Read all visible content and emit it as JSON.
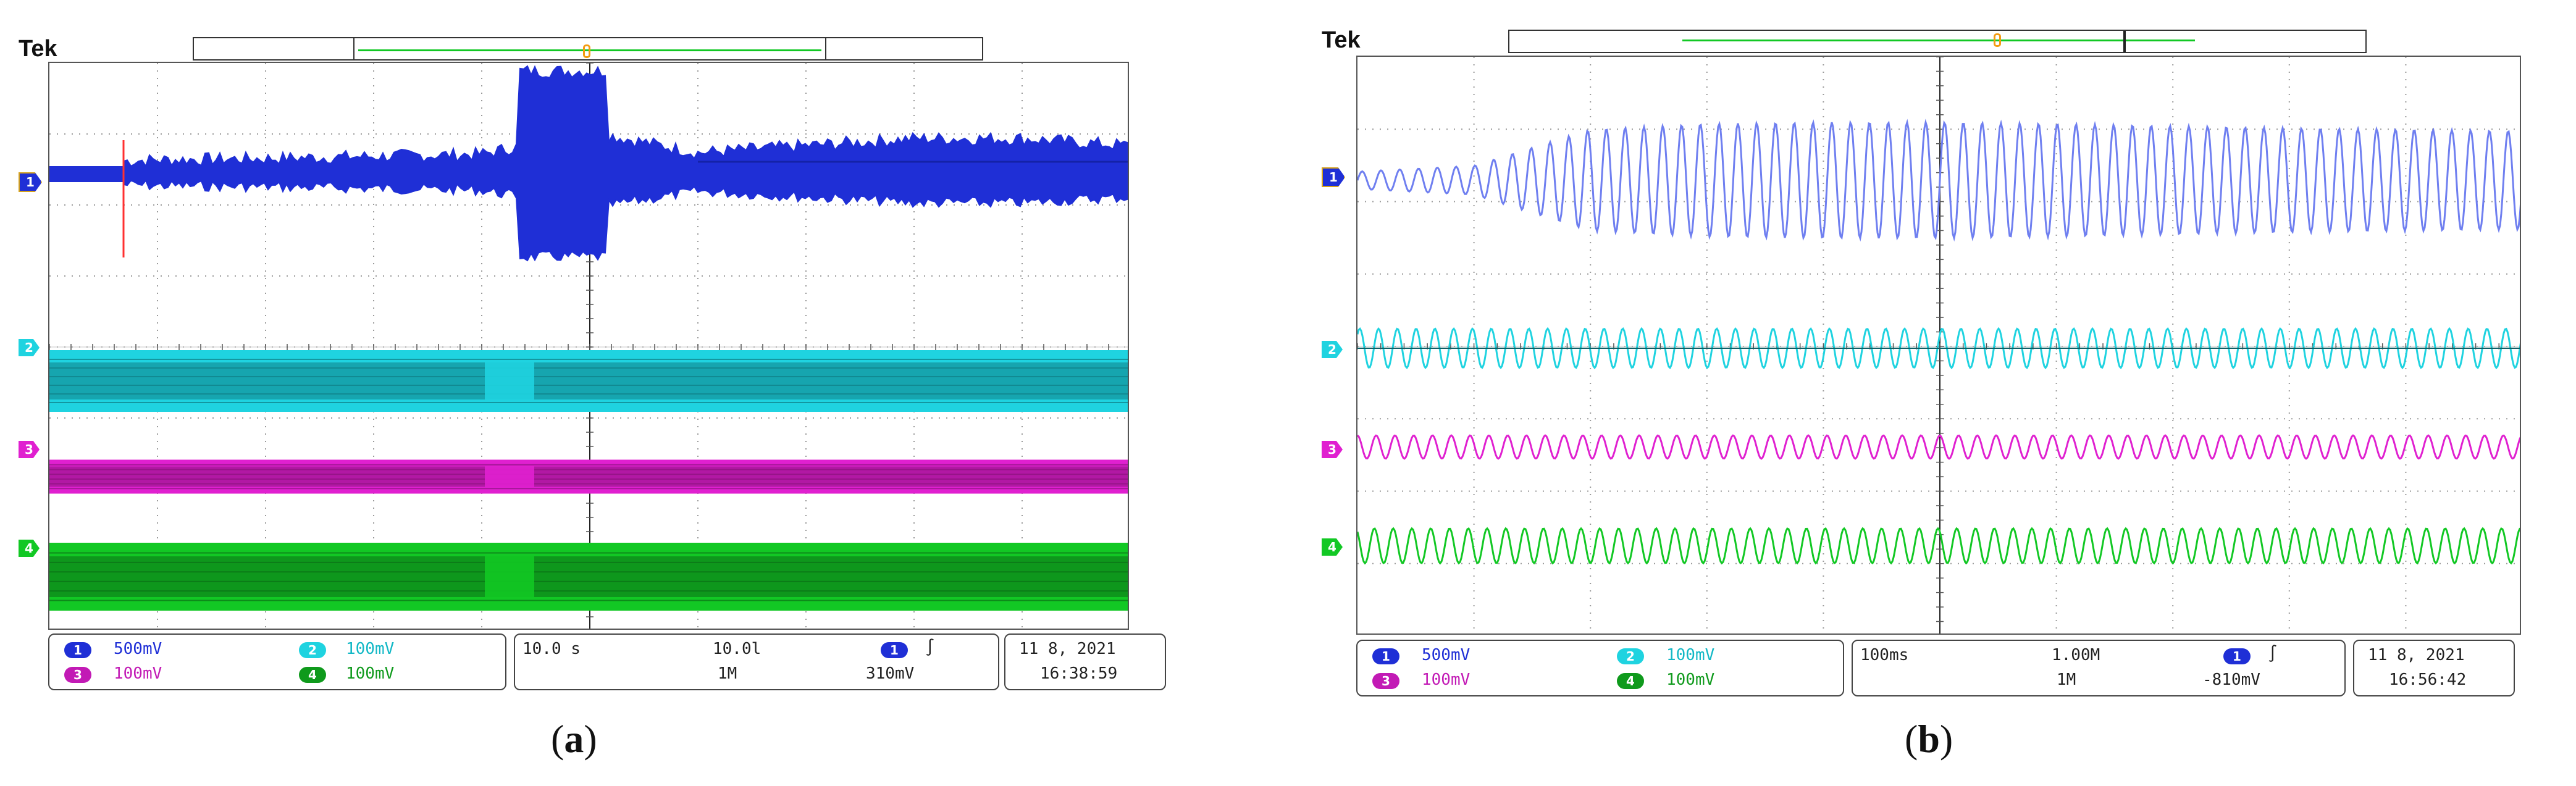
{
  "panels": [
    {
      "brand": "Tek",
      "caption_open": "(",
      "caption_letter": "a",
      "caption_close": ")",
      "markers": [
        "1",
        "2",
        "3",
        "4"
      ],
      "readout": {
        "ch1": {
          "num": "1",
          "value": "500mV"
        },
        "ch2": {
          "num": "2",
          "value": "100mV"
        },
        "ch3": {
          "num": "3",
          "value": "100mV"
        },
        "ch4": {
          "num": "4",
          "value": "100mV"
        },
        "timebase": "10.0 s",
        "sample_rate": "10.0l",
        "record_length": "1M",
        "trigger_channel": "1",
        "trigger_symbol": "∫",
        "trigger_level": "310mV",
        "date": "11 8,   2021",
        "time": "16:38:59"
      }
    },
    {
      "brand": "Tek",
      "caption_open": "(",
      "caption_letter": "b",
      "caption_close": ")",
      "markers": [
        "1",
        "2",
        "3",
        "4"
      ],
      "readout": {
        "ch1": {
          "num": "1",
          "value": "500mV"
        },
        "ch2": {
          "num": "2",
          "value": "100mV"
        },
        "ch3": {
          "num": "3",
          "value": "100mV"
        },
        "ch4": {
          "num": "4",
          "value": "100mV"
        },
        "timebase": "100ms",
        "sample_rate": "1.00M",
        "record_length": "1M",
        "trigger_channel": "1",
        "trigger_symbol": "∫",
        "trigger_level": "-810mV",
        "date": "11 8,   2021",
        "time": "16:56:42"
      }
    }
  ],
  "colors": {
    "ch1": "#1f2fd6",
    "ch1_light": "#6f7ff0",
    "ch2": "#1fd3e0",
    "ch2_dark": "#0f7f86",
    "ch3": "#e020d0",
    "ch4": "#12c824",
    "ch4_dark": "#0b6f16",
    "grid": "#9a9a9a",
    "trigger": "#f39c12",
    "red_edge": "#ff3030"
  },
  "chart_data": [
    {
      "type": "line",
      "title": "",
      "grid": true,
      "x_divisions": 10,
      "y_divisions": 8,
      "series": [
        {
          "channel": 1,
          "scale": "500mV",
          "envelope_div": [
            0.15,
            0.2,
            0.22,
            0.25,
            0.28,
            0.6,
            0.3,
            0.4,
            0.5,
            0.5,
            0.4
          ],
          "burst_at_div": 4.4
        },
        {
          "channel": 2,
          "scale": "100mV"
        },
        {
          "channel": 3,
          "scale": "100mV"
        },
        {
          "channel": 4,
          "scale": "100mV"
        }
      ]
    },
    {
      "type": "line",
      "title": "",
      "grid": true,
      "x_divisions": 10,
      "y_divisions": 8,
      "series": [
        {
          "channel": 1,
          "scale": "500mV",
          "cycles": 62,
          "amplitude_div": [
            0.12,
            0.2,
            0.7,
            0.78,
            0.8,
            0.8,
            0.78,
            0.75,
            0.72,
            0.7,
            0.68
          ]
        },
        {
          "channel": 2,
          "scale": "100mV",
          "cycles": 62
        },
        {
          "channel": 3,
          "scale": "100mV",
          "cycles": 62
        },
        {
          "channel": 4,
          "scale": "100mV",
          "cycles": 62
        }
      ]
    }
  ]
}
